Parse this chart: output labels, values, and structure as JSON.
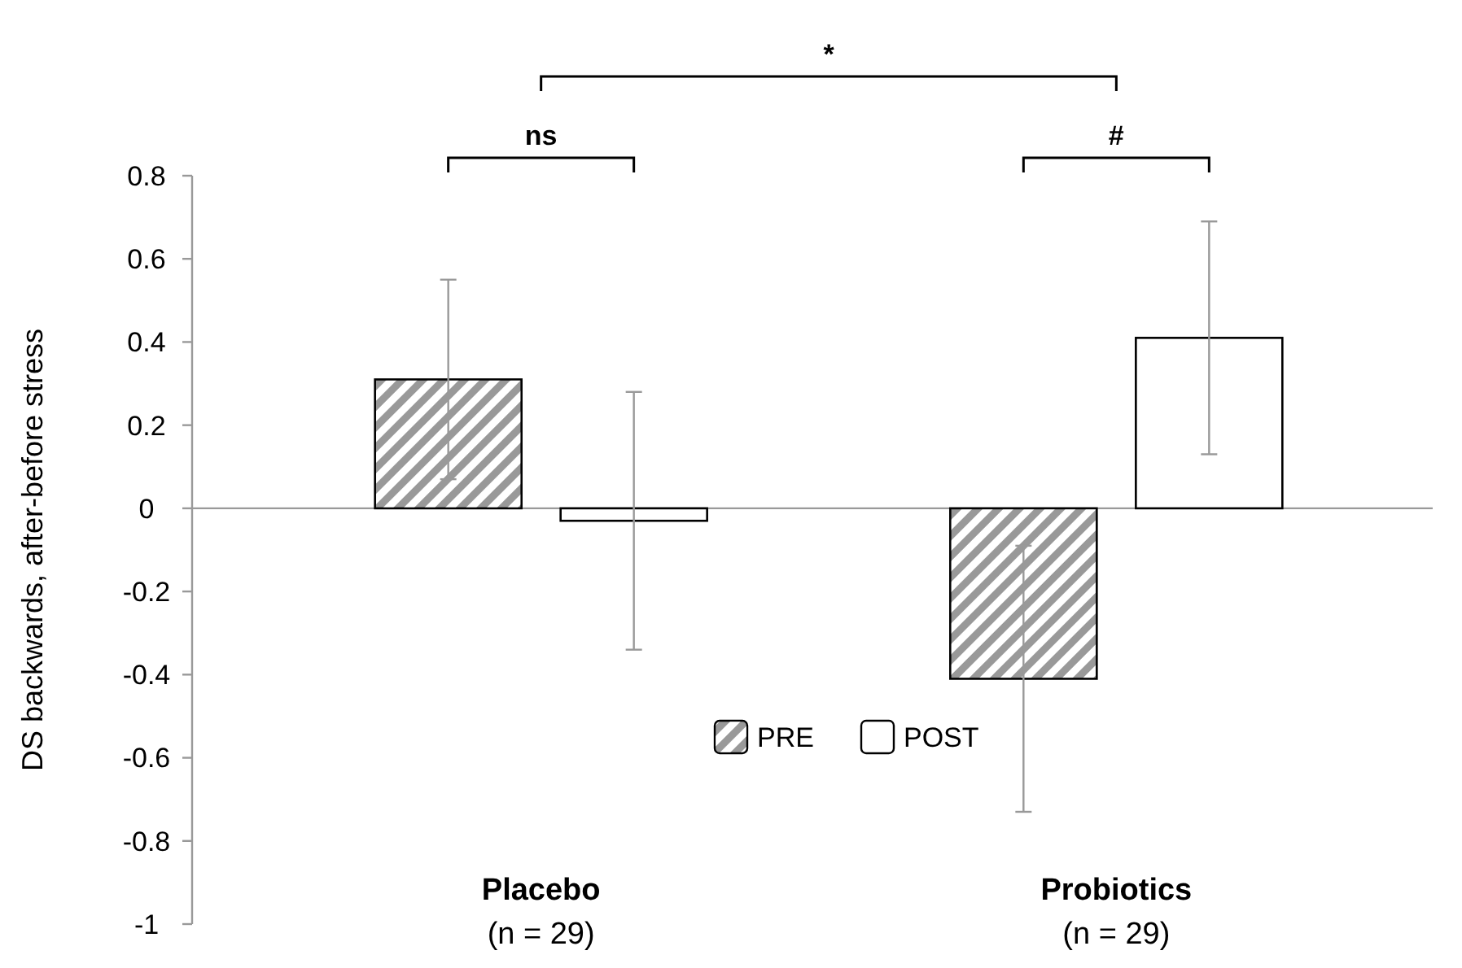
{
  "chart_data": {
    "type": "bar",
    "ylabel": "DS backwards, after-before stress",
    "categories": [
      "Placebo\n(n = 29)",
      "Probiotics\n(n = 29)"
    ],
    "series": [
      {
        "name": "PRE",
        "color": "#999999",
        "values": [
          0.31,
          -0.41
        ],
        "errors": [
          0.24,
          0.32
        ]
      },
      {
        "name": "POST",
        "color": "#ffffff",
        "values": [
          -0.03,
          0.41
        ],
        "errors": [
          0.31,
          0.28
        ]
      }
    ],
    "ylim": [
      -1,
      0.8
    ],
    "yticks": [
      -1,
      -0.8,
      -0.6,
      -0.4,
      -0.2,
      0,
      0.2,
      0.4,
      0.6,
      0.8
    ],
    "legend": "center",
    "annotations": [
      "*",
      "ns",
      "#"
    ]
  }
}
